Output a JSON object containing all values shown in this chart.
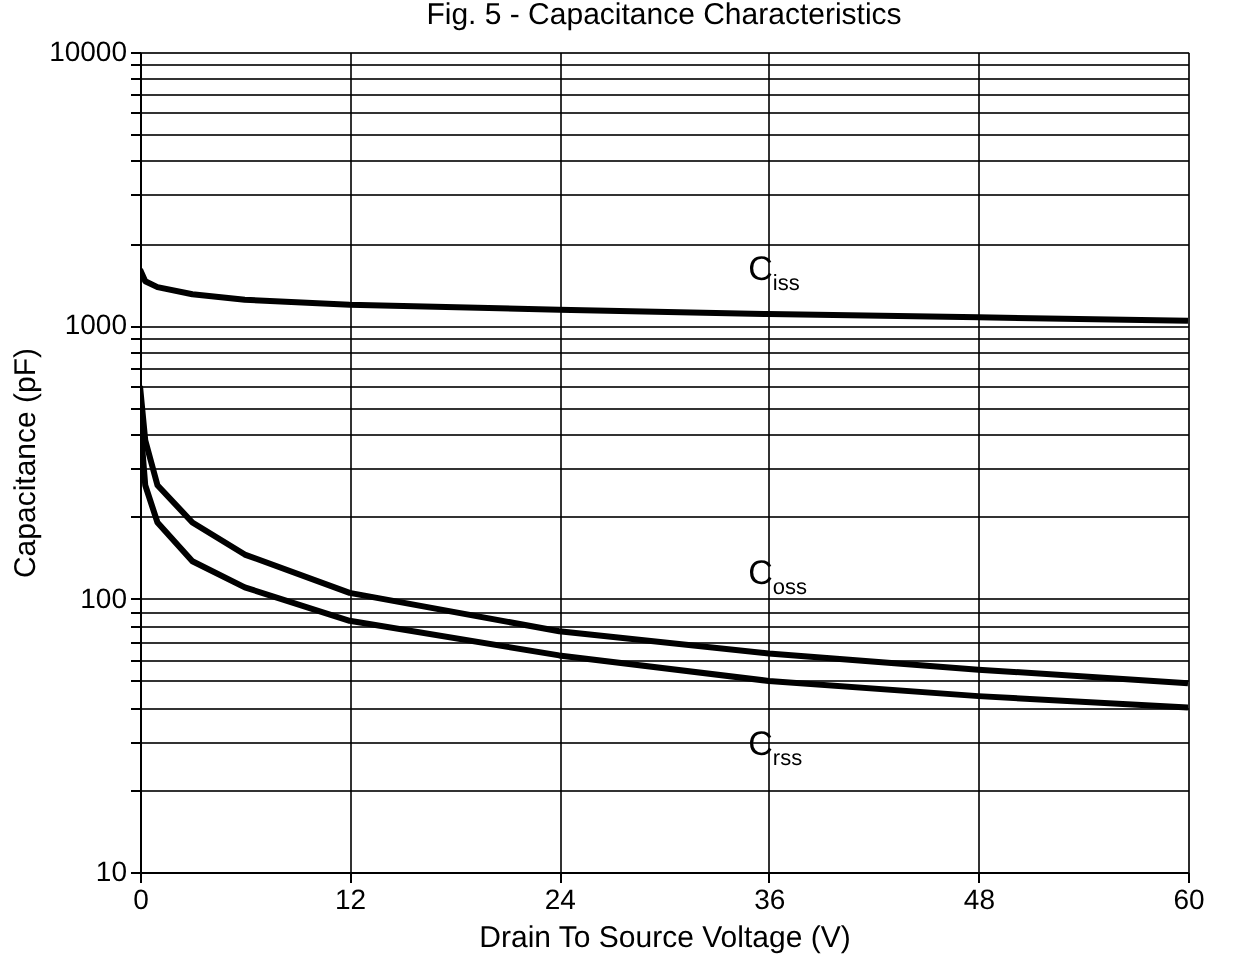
{
  "chart_data": {
    "type": "line",
    "title": "Fig. 5 - Capacitance Characteristics",
    "xlabel": "Drain To Source Voltage (V)",
    "ylabel": "Capacitance (pF)",
    "log": "y",
    "grid": true,
    "marker": "none",
    "line_style": "solid",
    "xlim": [
      0,
      60
    ],
    "xticks": [
      0,
      12,
      24,
      36,
      48,
      60
    ],
    "ylim": [
      10,
      10000
    ],
    "yticks": [
      10,
      {
        "value": 20,
        "label": null
      },
      {
        "value": 30,
        "label": null
      },
      {
        "value": 40,
        "label": null
      },
      {
        "value": 50,
        "label": null
      },
      {
        "value": 60,
        "label": null
      },
      {
        "value": 70,
        "label": null
      },
      {
        "value": 80,
        "label": null
      },
      {
        "value": 90,
        "label": null
      },
      100,
      {
        "value": 200,
        "label": null
      },
      {
        "value": 300,
        "label": null
      },
      {
        "value": 400,
        "label": null
      },
      {
        "value": 500,
        "label": null
      },
      {
        "value": 600,
        "label": null
      },
      {
        "value": 700,
        "label": null
      },
      {
        "value": 800,
        "label": null
      },
      {
        "value": 900,
        "label": null
      },
      1000,
      {
        "value": 2000,
        "label": null
      },
      {
        "value": 3000,
        "label": null
      },
      {
        "value": 4000,
        "label": null
      },
      {
        "value": 5000,
        "label": null
      },
      {
        "value": 6000,
        "label": null
      },
      {
        "value": 7000,
        "label": null
      },
      {
        "value": 8000,
        "label": null
      },
      {
        "value": 9000,
        "label": null
      },
      10000
    ],
    "x": [
      0,
      0.3,
      1,
      3,
      6,
      12,
      24,
      36,
      48,
      60
    ],
    "series": [
      {
        "color": "#000000",
        "values": [
          1600,
          1450,
          1380,
          1300,
          1240,
          1190,
          1140,
          1100,
          1070,
          1040
        ]
      },
      {
        "color": "#000000",
        "values": [
          600,
          380,
          260,
          190,
          145,
          105,
          76,
          63,
          55,
          49
        ]
      },
      {
        "color": "#000000",
        "values": [
          450,
          260,
          190,
          137,
          110,
          83,
          62,
          50,
          44,
          40
        ]
      }
    ],
    "annotations": [
      "C$_{iss}$",
      "C$_{oss}$",
      "C$_{rss}$"
    ]
  }
}
